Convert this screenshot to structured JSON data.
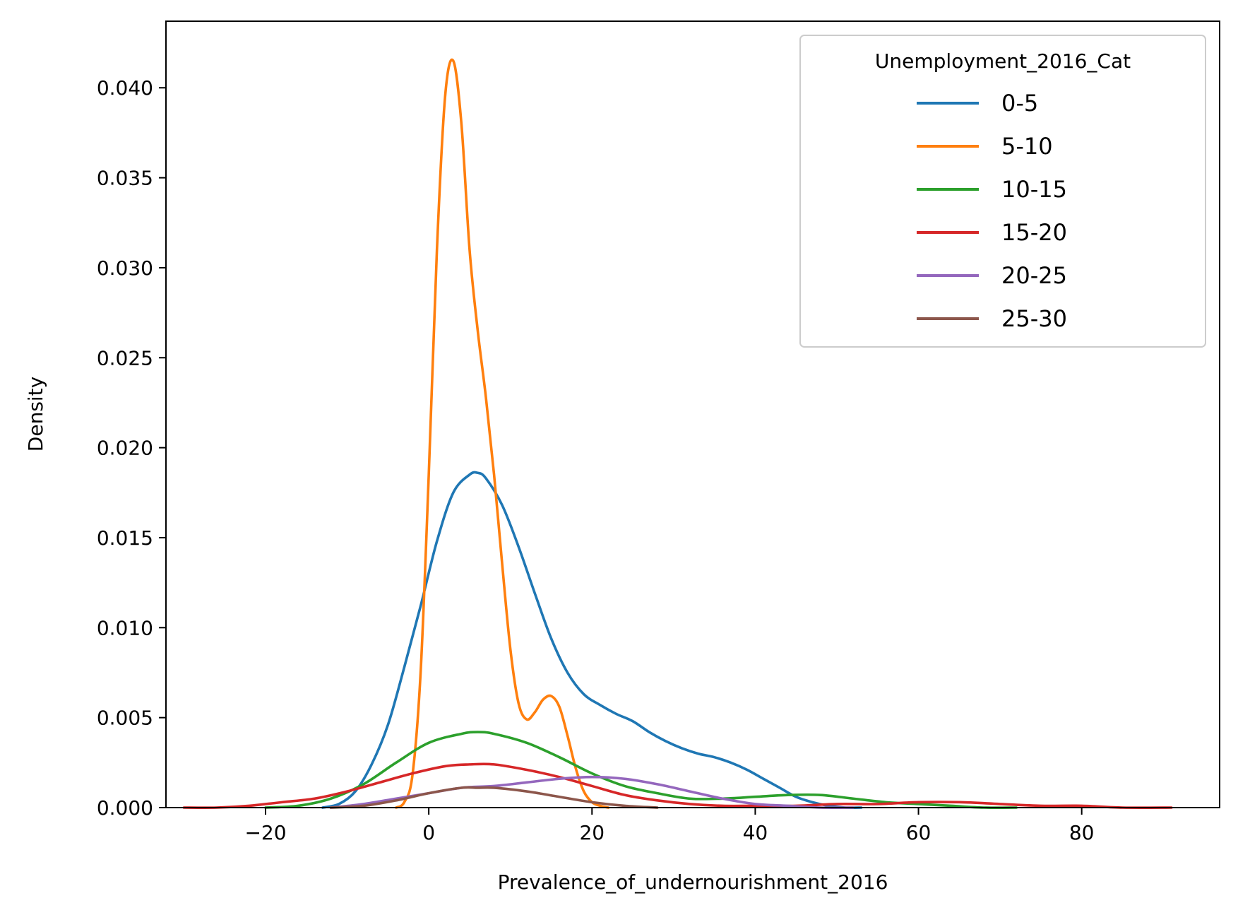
{
  "chart_data": {
    "type": "line",
    "title": "",
    "xlabel": "Prevalence_of_undernourishment_2016",
    "ylabel": "Density",
    "xlim": [
      -32.2,
      96.9
    ],
    "ylim": [
      0,
      0.0437
    ],
    "xticks": [
      -20,
      0,
      20,
      40,
      60,
      80
    ],
    "xtick_labels": [
      "−20",
      "0",
      "20",
      "40",
      "60",
      "80"
    ],
    "yticks": [
      0,
      0.005,
      0.01,
      0.015,
      0.02,
      0.025,
      0.03,
      0.035,
      0.04
    ],
    "ytick_labels": [
      "0.000",
      "0.005",
      "0.010",
      "0.015",
      "0.020",
      "0.025",
      "0.030",
      "0.035",
      "0.040"
    ],
    "grid": false,
    "legend": {
      "title": "Unemployment_2016_Cat",
      "position": "top-right"
    },
    "series": [
      {
        "name": "0-5",
        "color": "#1f77b4",
        "x": [
          -13,
          -11,
          -9,
          -7,
          -5,
          -3,
          -1,
          1,
          3,
          5,
          6,
          7,
          9,
          11,
          13,
          15,
          17,
          19,
          21,
          23,
          25,
          27,
          29,
          31,
          33,
          35,
          37,
          39,
          41,
          43,
          45,
          47,
          49,
          51,
          53
        ],
        "y": [
          0,
          0.0002,
          0.0009,
          0.0024,
          0.0046,
          0.0078,
          0.0112,
          0.0148,
          0.0175,
          0.0185,
          0.0186,
          0.0183,
          0.0168,
          0.0145,
          0.0119,
          0.0094,
          0.0075,
          0.0063,
          0.0057,
          0.0052,
          0.0048,
          0.0042,
          0.0037,
          0.0033,
          0.003,
          0.0028,
          0.0025,
          0.0021,
          0.0016,
          0.0011,
          0.0006,
          0.0003,
          0.0001,
          0.0,
          0
        ]
      },
      {
        "name": "5-10",
        "color": "#ff7f0e",
        "x": [
          -4,
          -3,
          -2,
          -1,
          0,
          1,
          2,
          3,
          4,
          5,
          6,
          7,
          8,
          9,
          10,
          11,
          12,
          13,
          14,
          15,
          16,
          17,
          18,
          19,
          20,
          21,
          22
        ],
        "y": [
          0,
          0.0003,
          0.0018,
          0.0075,
          0.0185,
          0.031,
          0.0395,
          0.0415,
          0.038,
          0.031,
          0.0265,
          0.0228,
          0.0185,
          0.0135,
          0.0088,
          0.0058,
          0.0049,
          0.0053,
          0.006,
          0.0062,
          0.0056,
          0.004,
          0.0022,
          0.0009,
          0.0003,
          0.0001,
          0
        ]
      },
      {
        "name": "10-15",
        "color": "#2ca02c",
        "x": [
          -20,
          -16,
          -12,
          -8,
          -4,
          0,
          4,
          6,
          8,
          12,
          16,
          20,
          24,
          28,
          32,
          36,
          40,
          44,
          48,
          52,
          56,
          60,
          64,
          68,
          72
        ],
        "y": [
          0,
          0.0001,
          0.0005,
          0.0013,
          0.0025,
          0.0036,
          0.0041,
          0.0042,
          0.0041,
          0.0036,
          0.0028,
          0.0019,
          0.0012,
          0.0008,
          0.0005,
          0.0005,
          0.0006,
          0.0007,
          0.0007,
          0.0005,
          0.0003,
          0.0002,
          0.0001,
          0.0,
          0
        ]
      },
      {
        "name": "15-20",
        "color": "#d62728",
        "x": [
          -30,
          -26,
          -22,
          -18,
          -14,
          -10,
          -6,
          -2,
          2,
          5,
          8,
          12,
          16,
          20,
          24,
          28,
          32,
          36,
          40,
          45,
          50,
          55,
          60,
          65,
          70,
          75,
          80,
          85,
          91
        ],
        "y": [
          0,
          0,
          0.0001,
          0.0003,
          0.0005,
          0.0009,
          0.0014,
          0.0019,
          0.0023,
          0.0024,
          0.0024,
          0.0021,
          0.0017,
          0.0012,
          0.0007,
          0.0004,
          0.0002,
          0.0001,
          0.0001,
          0.0001,
          0.0002,
          0.0002,
          0.0003,
          0.0003,
          0.0002,
          0.0001,
          0.0001,
          0.0,
          0
        ]
      },
      {
        "name": "20-25",
        "color": "#9467bd",
        "x": [
          -12,
          -8,
          -4,
          0,
          4,
          8,
          12,
          16,
          20,
          24,
          28,
          32,
          36,
          40,
          44,
          48,
          52
        ],
        "y": [
          0,
          0.0002,
          0.0005,
          0.0008,
          0.0011,
          0.0012,
          0.0014,
          0.0016,
          0.0017,
          0.0016,
          0.0013,
          0.0009,
          0.0005,
          0.0002,
          0.0001,
          0.0,
          0
        ]
      },
      {
        "name": "25-30",
        "color": "#8c564b",
        "x": [
          -12,
          -8,
          -4,
          0,
          4,
          6,
          8,
          12,
          16,
          20,
          24,
          28
        ],
        "y": [
          0,
          0.0001,
          0.0004,
          0.0008,
          0.0011,
          0.0011,
          0.0011,
          0.0009,
          0.0006,
          0.0003,
          0.0001,
          0
        ]
      }
    ]
  }
}
